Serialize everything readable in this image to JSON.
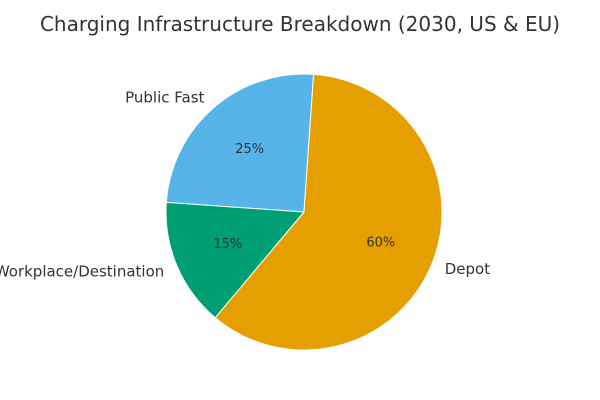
{
  "chart_data": {
    "type": "pie",
    "title": "Charging Infrastructure Breakdown (2030, US & EU)",
    "slices": [
      {
        "label": "Public Fast",
        "value": 25,
        "pct_label": "25%",
        "color": "#56B4E9"
      },
      {
        "label": "Workplace/Destination",
        "value": 15,
        "pct_label": "15%",
        "color": "#009E73"
      },
      {
        "label": "Depot",
        "value": 60,
        "pct_label": "60%",
        "color": "#E69F00"
      }
    ],
    "start_angle_deg": 86,
    "direction": "counterclockwise"
  }
}
